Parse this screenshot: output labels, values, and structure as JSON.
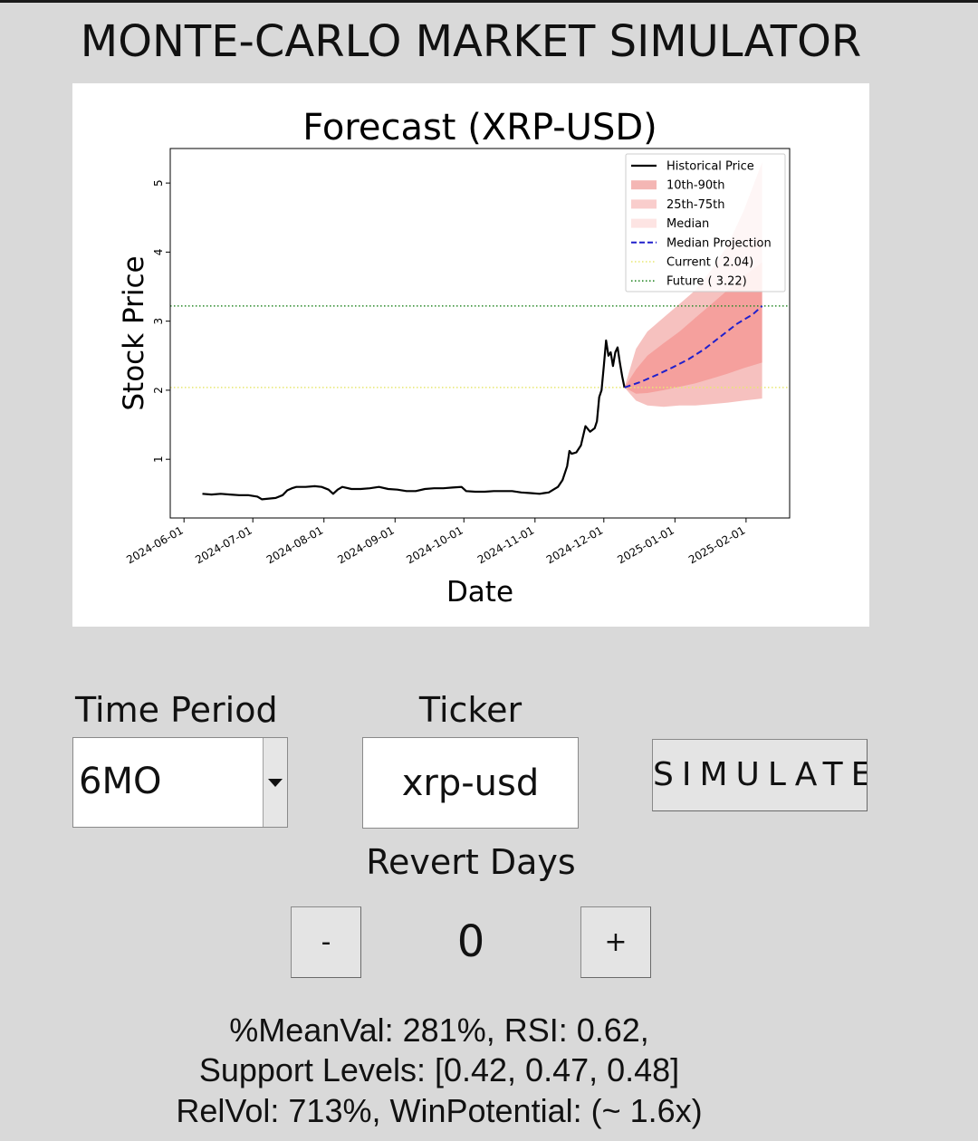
{
  "app": {
    "title": "MONTE-CARLO MARKET SIMULATOR"
  },
  "controls": {
    "time_period_label": "Time Period",
    "time_period_value": "6MO",
    "ticker_label": "Ticker",
    "ticker_value": "xrp-usd",
    "simulate_label": "SIMULATE",
    "revert_days_label": "Revert Days",
    "revert_minus_label": "-",
    "revert_value": "0",
    "revert_plus_label": "+"
  },
  "stats": {
    "line1": "%MeanVal: 281%,    RSI: 0.62,",
    "line2": "Support Levels:  [0.42, 0.47, 0.48]",
    "line3": "RelVol: 713%,   WinPotential:  (~ 1.6x)"
  },
  "colors": {
    "historical": "#000000",
    "band_10_90": "#f4b6b4",
    "band_25_75": "#f59c99",
    "median_band": "#fde4e3",
    "median_projection": "#2020cc",
    "current_line": "#e8e870",
    "future_line": "#2a8a2a"
  },
  "chart_data": {
    "type": "line",
    "title": "Forecast (XRP-USD)",
    "xlabel": "Date",
    "ylabel": "Stock Price",
    "xlim": [
      "2024-05-26",
      "2025-02-20"
    ],
    "ylim": [
      0.15,
      5.5
    ],
    "x_ticks": [
      "2024-06-01",
      "2024-07-01",
      "2024-08-01",
      "2024-09-01",
      "2024-10-01",
      "2024-11-01",
      "2024-12-01",
      "2025-01-01",
      "2025-02-01"
    ],
    "y_ticks": [
      1,
      2,
      3,
      4,
      5
    ],
    "legend_position": "top-right",
    "legend": [
      "Historical Price",
      "10th-90th",
      "25th-75th",
      "Median",
      "Median Projection",
      "Current ( 2.04)",
      "Future ( 3.22)"
    ],
    "series": [
      {
        "name": "Historical Price",
        "points": [
          [
            "2024-06-09",
            0.5
          ],
          [
            "2024-06-13",
            0.49
          ],
          [
            "2024-06-17",
            0.5
          ],
          [
            "2024-06-21",
            0.49
          ],
          [
            "2024-06-25",
            0.48
          ],
          [
            "2024-06-29",
            0.48
          ],
          [
            "2024-07-03",
            0.46
          ],
          [
            "2024-07-05",
            0.42
          ],
          [
            "2024-07-08",
            0.43
          ],
          [
            "2024-07-11",
            0.44
          ],
          [
            "2024-07-14",
            0.48
          ],
          [
            "2024-07-16",
            0.55
          ],
          [
            "2024-07-18",
            0.58
          ],
          [
            "2024-07-20",
            0.6
          ],
          [
            "2024-07-24",
            0.6
          ],
          [
            "2024-07-28",
            0.61
          ],
          [
            "2024-07-31",
            0.6
          ],
          [
            "2024-08-03",
            0.56
          ],
          [
            "2024-08-05",
            0.5
          ],
          [
            "2024-08-07",
            0.56
          ],
          [
            "2024-08-09",
            0.6
          ],
          [
            "2024-08-13",
            0.57
          ],
          [
            "2024-08-17",
            0.57
          ],
          [
            "2024-08-21",
            0.58
          ],
          [
            "2024-08-25",
            0.6
          ],
          [
            "2024-08-29",
            0.57
          ],
          [
            "2024-09-02",
            0.56
          ],
          [
            "2024-09-06",
            0.54
          ],
          [
            "2024-09-10",
            0.54
          ],
          [
            "2024-09-14",
            0.57
          ],
          [
            "2024-09-18",
            0.58
          ],
          [
            "2024-09-22",
            0.58
          ],
          [
            "2024-09-26",
            0.59
          ],
          [
            "2024-09-30",
            0.6
          ],
          [
            "2024-10-02",
            0.54
          ],
          [
            "2024-10-06",
            0.53
          ],
          [
            "2024-10-10",
            0.53
          ],
          [
            "2024-10-14",
            0.54
          ],
          [
            "2024-10-18",
            0.54
          ],
          [
            "2024-10-22",
            0.54
          ],
          [
            "2024-10-26",
            0.52
          ],
          [
            "2024-10-30",
            0.51
          ],
          [
            "2024-11-03",
            0.5
          ],
          [
            "2024-11-05",
            0.51
          ],
          [
            "2024-11-07",
            0.52
          ],
          [
            "2024-11-09",
            0.56
          ],
          [
            "2024-11-11",
            0.6
          ],
          [
            "2024-11-13",
            0.7
          ],
          [
            "2024-11-15",
            0.9
          ],
          [
            "2024-11-16",
            1.12
          ],
          [
            "2024-11-17",
            1.08
          ],
          [
            "2024-11-19",
            1.1
          ],
          [
            "2024-11-21",
            1.2
          ],
          [
            "2024-11-23",
            1.48
          ],
          [
            "2024-11-25",
            1.4
          ],
          [
            "2024-11-27",
            1.45
          ],
          [
            "2024-11-28",
            1.55
          ],
          [
            "2024-11-29",
            1.9
          ],
          [
            "2024-11-30",
            2.0
          ],
          [
            "2024-12-01",
            2.35
          ],
          [
            "2024-12-02",
            2.72
          ],
          [
            "2024-12-03",
            2.5
          ],
          [
            "2024-12-04",
            2.55
          ],
          [
            "2024-12-05",
            2.35
          ],
          [
            "2024-12-06",
            2.55
          ],
          [
            "2024-12-07",
            2.62
          ],
          [
            "2024-12-08",
            2.4
          ],
          [
            "2024-12-09",
            2.2
          ],
          [
            "2024-12-10",
            2.04
          ]
        ]
      },
      {
        "name": "Median Projection",
        "points": [
          [
            "2024-12-10",
            2.04
          ],
          [
            "2024-12-17",
            2.12
          ],
          [
            "2024-12-24",
            2.22
          ],
          [
            "2024-12-31",
            2.33
          ],
          [
            "2025-01-07",
            2.45
          ],
          [
            "2025-01-14",
            2.6
          ],
          [
            "2025-01-21",
            2.78
          ],
          [
            "2025-01-28",
            2.96
          ],
          [
            "2025-02-04",
            3.1
          ],
          [
            "2025-02-08",
            3.22
          ]
        ]
      },
      {
        "name": "10th-90th",
        "x": [
          "2024-12-10",
          "2024-12-15",
          "2024-12-20",
          "2024-12-27",
          "2025-01-03",
          "2025-01-10",
          "2025-01-17",
          "2025-01-24",
          "2025-01-31",
          "2025-02-08"
        ],
        "lower": [
          2.04,
          1.85,
          1.78,
          1.76,
          1.78,
          1.78,
          1.8,
          1.82,
          1.85,
          1.88
        ],
        "upper": [
          2.04,
          2.6,
          2.85,
          3.05,
          3.25,
          3.45,
          3.75,
          4.1,
          4.6,
          5.3
        ]
      },
      {
        "name": "25th-75th",
        "x": [
          "2024-12-10",
          "2024-12-15",
          "2024-12-20",
          "2024-12-27",
          "2025-01-03",
          "2025-01-10",
          "2025-01-17",
          "2025-01-24",
          "2025-01-31",
          "2025-02-08"
        ],
        "lower": [
          2.04,
          1.95,
          1.96,
          2.0,
          2.05,
          2.1,
          2.17,
          2.24,
          2.32,
          2.4
        ],
        "upper": [
          2.04,
          2.3,
          2.5,
          2.68,
          2.85,
          3.05,
          3.25,
          3.45,
          3.65,
          3.85
        ]
      }
    ],
    "reference_lines": [
      {
        "name": "Current ( 2.04)",
        "y": 2.04
      },
      {
        "name": "Future ( 3.22)",
        "y": 3.22
      }
    ]
  }
}
